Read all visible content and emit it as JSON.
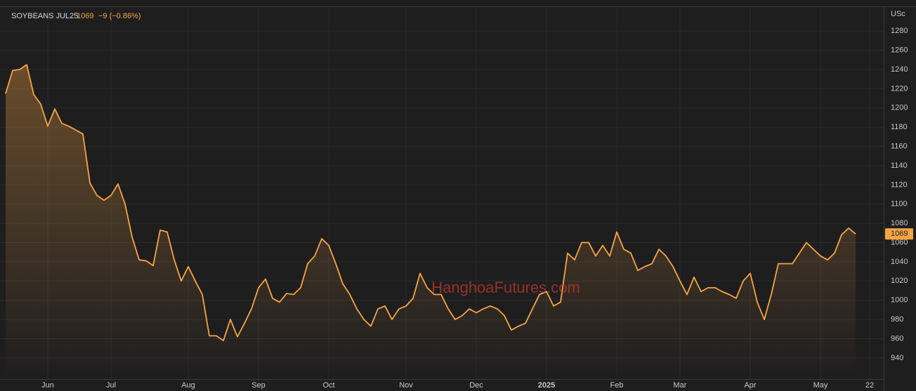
{
  "chart_data": {
    "type": "area",
    "title": "SOYBEANS JUL25",
    "change_label": "−9 (−0.86%)",
    "y_unit": "USc",
    "watermark": "HanghoaFutures.com",
    "color": "#f7a444",
    "grid": true,
    "ylim": [
      918,
      1305
    ],
    "yticks": [
      940,
      960,
      980,
      1000,
      1020,
      1040,
      1060,
      1080,
      1100,
      1120,
      1140,
      1160,
      1180,
      1200,
      1220,
      1240,
      1260,
      1280
    ],
    "categories": [
      null,
      null,
      null,
      null,
      null,
      null,
      "Jun",
      null,
      null,
      null,
      null,
      null,
      null,
      null,
      null,
      "Jul",
      null,
      null,
      null,
      null,
      null,
      null,
      null,
      null,
      null,
      null,
      "Aug",
      null,
      null,
      null,
      null,
      null,
      null,
      null,
      null,
      null,
      "Sep",
      null,
      null,
      null,
      null,
      null,
      null,
      null,
      null,
      null,
      "Oct",
      null,
      null,
      null,
      null,
      null,
      null,
      null,
      null,
      null,
      null,
      "Nov",
      null,
      null,
      null,
      null,
      null,
      null,
      null,
      null,
      null,
      "Dec",
      null,
      null,
      null,
      null,
      null,
      null,
      null,
      null,
      null,
      "2025",
      null,
      null,
      null,
      null,
      null,
      null,
      null,
      null,
      null,
      "Feb",
      null,
      null,
      null,
      null,
      null,
      null,
      null,
      null,
      "Mar",
      null,
      null,
      null,
      null,
      null,
      null,
      null,
      null,
      null,
      "Apr",
      null,
      null,
      null,
      null,
      null,
      null,
      null,
      null,
      null,
      "May",
      null,
      null,
      null,
      null,
      null,
      null,
      "22",
      null
    ],
    "values": [
      1215,
      1239,
      1240,
      1245,
      1214,
      1204,
      1181,
      1199,
      1184,
      1181,
      1177,
      1173,
      1122,
      1109,
      1104,
      1109,
      1121,
      1100,
      1066,
      1042,
      1041,
      1036,
      1073,
      1071,
      1042,
      1020,
      1035,
      1020,
      1006,
      963,
      963,
      958,
      980,
      962,
      976,
      991,
      1013,
      1022,
      1002,
      998,
      1007,
      1006,
      1013,
      1038,
      1046,
      1064,
      1057,
      1038,
      1017,
      1006,
      991,
      980,
      973,
      991,
      994,
      980,
      991,
      994,
      1002,
      1028,
      1013,
      1006,
      1006,
      991,
      980,
      984,
      991,
      987,
      991,
      994,
      991,
      984,
      969,
      973,
      976,
      991,
      1006,
      1009,
      994,
      998,
      1049,
      1042,
      1060,
      1060,
      1046,
      1057,
      1046,
      1071,
      1053,
      1049,
      1031,
      1035,
      1038,
      1053,
      1046,
      1035,
      1020,
      1006,
      1024,
      1009,
      1013,
      1013,
      1009,
      1006,
      1002,
      1020,
      1028,
      998,
      980,
      1006,
      1038,
      1038,
      1038,
      1049,
      1060,
      1053,
      1046,
      1042,
      1049,
      1068,
      1075,
      1069,
      null,
      null,
      null
    ]
  }
}
